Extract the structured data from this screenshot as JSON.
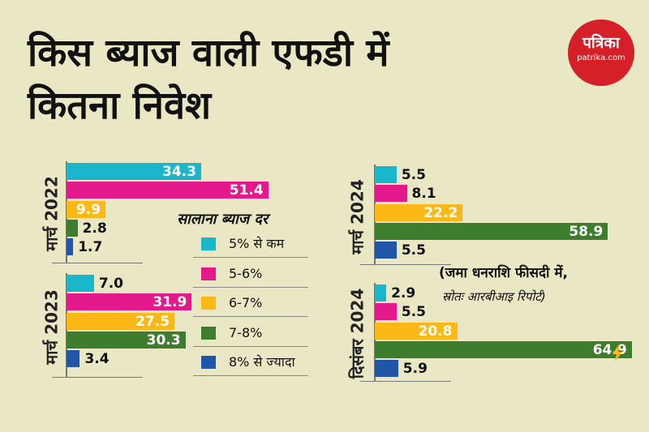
{
  "title": {
    "line1": "किस ब्याज वाली एफडी में",
    "line2": "कितना निवेश"
  },
  "brand": {
    "name": "पत्रिका",
    "site": "patrika.com",
    "color": "#d52027"
  },
  "legend": {
    "title": "सालाना ब्याज दर",
    "items": [
      "5% से कम",
      "5-6%",
      "6-7%",
      "7-8%",
      "8% से ज्यादा"
    ]
  },
  "note": {
    "unit": "(जमा धनराशि फीसदी में,",
    "source": "स्रोतः आरबीआइ रिपोर्ट)"
  },
  "icon": "lightning-icon",
  "colors": [
    "#1bb6cc",
    "#e3198c",
    "#fbb817",
    "#3f7d2e",
    "#2155a7"
  ],
  "chart_data": [
    {
      "type": "bar",
      "orientation": "horizontal",
      "period": "मार्च 2022",
      "categories": [
        "5% से कम",
        "5-6%",
        "6-7%",
        "7-8%",
        "8% से ज्यादा"
      ],
      "values": [
        34.3,
        51.4,
        9.9,
        2.8,
        1.7
      ],
      "labels": [
        "34.3",
        "51.4",
        "9.9",
        "2.8",
        "1.7"
      ]
    },
    {
      "type": "bar",
      "orientation": "horizontal",
      "period": "मार्च 2023",
      "categories": [
        "5% से कम",
        "5-6%",
        "6-7%",
        "7-8%",
        "8% से ज्यादा"
      ],
      "values": [
        7.0,
        31.9,
        27.5,
        30.3,
        3.4
      ],
      "labels": [
        "7.0",
        "31.9",
        "27.5",
        "30.3",
        "3.4"
      ]
    },
    {
      "type": "bar",
      "orientation": "horizontal",
      "period": "मार्च 2024",
      "categories": [
        "5% से कम",
        "5-6%",
        "6-7%",
        "7-8%",
        "8% से ज्यादा"
      ],
      "values": [
        5.5,
        8.1,
        22.2,
        58.9,
        5.5
      ],
      "labels": [
        "5.5",
        "8.1",
        "22.2",
        "58.9",
        "5.5"
      ]
    },
    {
      "type": "bar",
      "orientation": "horizontal",
      "period": "दिसंबर 2024",
      "categories": [
        "5% से कम",
        "5-6%",
        "6-7%",
        "7-8%",
        "8% से ज्यादा"
      ],
      "values": [
        2.9,
        5.5,
        20.8,
        64.9,
        5.9
      ],
      "labels": [
        "2.9",
        "5.5",
        "20.8",
        "64.9",
        "5.9"
      ]
    }
  ]
}
